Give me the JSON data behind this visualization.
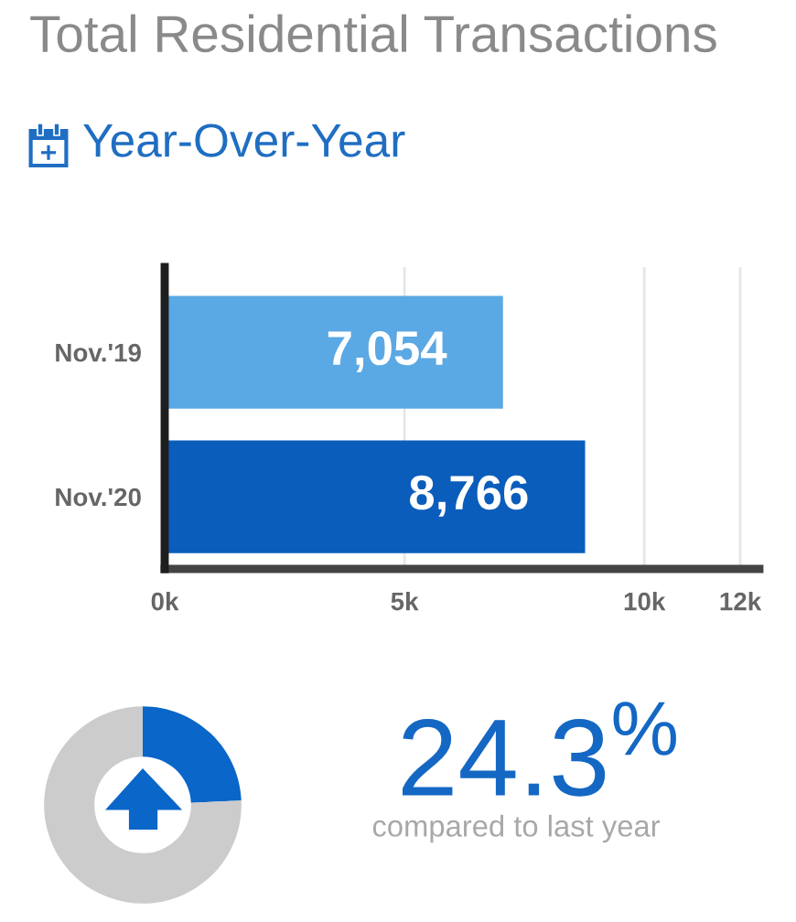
{
  "chart_data": [
    {
      "type": "bar",
      "title": "Total Residential Transactions",
      "subtitle": "Year-Over-Year",
      "orientation": "horizontal",
      "categories": [
        "Nov.'19",
        "Nov.'20"
      ],
      "values": [
        7054,
        8766
      ],
      "colors": [
        "#5aa8e4",
        "#0b5dbb"
      ],
      "value_labels": [
        "7,054",
        "8,766"
      ],
      "xlim": [
        0,
        12400
      ],
      "xticks": [
        {
          "value": 0,
          "label": "0k"
        },
        {
          "value": 5000,
          "label": "5k"
        },
        {
          "value": 10000,
          "label": "10k"
        },
        {
          "value": 12000,
          "label": "12k"
        }
      ],
      "grid": "x"
    },
    {
      "type": "donut",
      "categories": [
        null,
        null
      ],
      "values": [
        24.3,
        75.7
      ],
      "colors": [
        "#0a66c8",
        "#cccccc"
      ],
      "annotations": [
        "24.3$^{%}$",
        "compared to last year"
      ]
    }
  ]
}
